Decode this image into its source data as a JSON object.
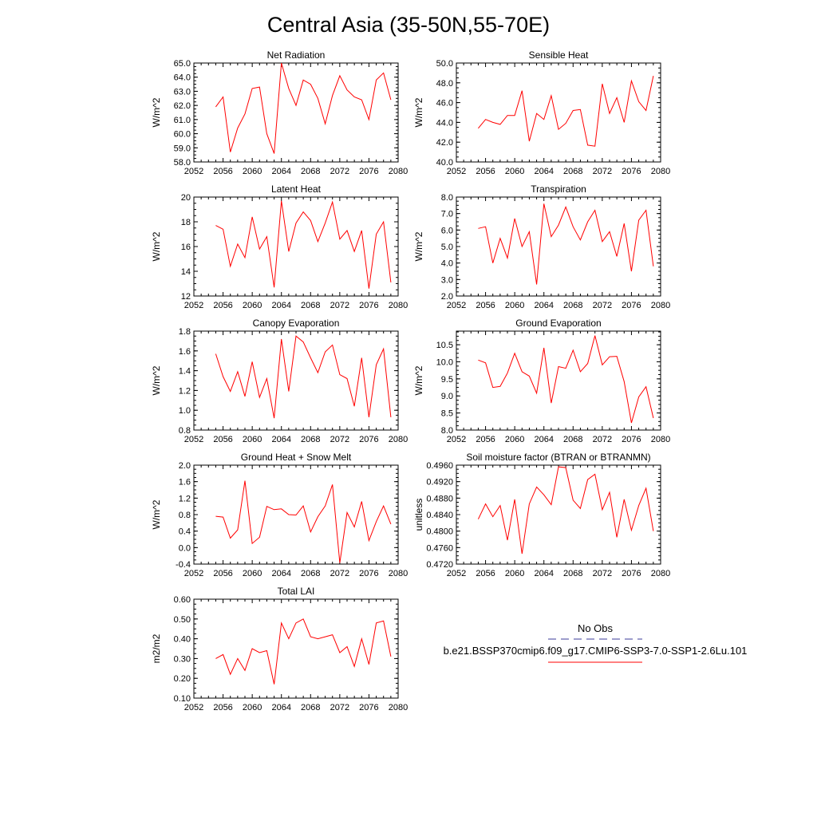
{
  "page_title": "Central Asia (35-50N,55-70E)",
  "legend": {
    "items": [
      {
        "label": "No Obs",
        "color": "#3b3b9a",
        "dash": "dashed"
      },
      {
        "label": "b.e21.BSSP370cmip6.f09_g17.CMIP6-SSP3-7.0-SSP1-2.6Lu.101",
        "color": "#ff0000",
        "dash": "solid"
      }
    ]
  },
  "chart_data": [
    {
      "type": "line",
      "title": "Net Radiation",
      "ylabel": "W/m^2",
      "xlim": [
        2052,
        2080
      ],
      "ylim": [
        58.0,
        65.0
      ],
      "xticks": [
        2052,
        2056,
        2060,
        2064,
        2068,
        2072,
        2076,
        2080
      ],
      "xtick_labels": [
        "2052",
        "2056",
        "2060",
        "2064",
        "2068",
        "2072",
        "2076",
        "2080"
      ],
      "yticks": [
        58,
        59,
        60,
        61,
        62,
        63,
        64,
        65
      ],
      "ytick_labels": [
        "58.0",
        "59.0",
        "60.0",
        "61.0",
        "62.0",
        "63.0",
        "64.0",
        "65.0"
      ],
      "color": "#ff0000",
      "x": [
        2055,
        2056,
        2057,
        2058,
        2059,
        2060,
        2061,
        2062,
        2063,
        2064,
        2065,
        2066,
        2067,
        2068,
        2069,
        2070,
        2071,
        2072,
        2073,
        2074,
        2075,
        2076,
        2077,
        2078,
        2079
      ],
      "y": [
        61.9,
        62.6,
        58.7,
        60.4,
        61.4,
        63.2,
        63.3,
        60.0,
        58.6,
        65.0,
        63.2,
        62.0,
        63.8,
        63.5,
        62.5,
        60.7,
        62.7,
        64.1,
        63.1,
        62.6,
        62.4,
        61.0,
        63.8,
        64.3,
        62.4
      ]
    },
    {
      "type": "line",
      "title": "Sensible Heat",
      "ylabel": "W/m^2",
      "xlim": [
        2052,
        2080
      ],
      "ylim": [
        40.0,
        50.0
      ],
      "xticks": [
        2052,
        2056,
        2060,
        2064,
        2068,
        2072,
        2076,
        2080
      ],
      "xtick_labels": [
        "2052",
        "2056",
        "2060",
        "2064",
        "2068",
        "2072",
        "2076",
        "2080"
      ],
      "yticks": [
        40,
        42,
        44,
        46,
        48,
        50
      ],
      "ytick_labels": [
        "40.0",
        "42.0",
        "44.0",
        "46.0",
        "48.0",
        "50.0"
      ],
      "color": "#ff0000",
      "x": [
        2055,
        2056,
        2057,
        2058,
        2059,
        2060,
        2061,
        2062,
        2063,
        2064,
        2065,
        2066,
        2067,
        2068,
        2069,
        2070,
        2071,
        2072,
        2073,
        2074,
        2075,
        2076,
        2077,
        2078,
        2079
      ],
      "y": [
        43.4,
        44.3,
        44.0,
        43.8,
        44.7,
        44.7,
        47.2,
        42.1,
        44.9,
        44.3,
        46.7,
        43.3,
        43.9,
        45.2,
        45.3,
        41.7,
        41.6,
        47.9,
        44.9,
        46.5,
        44.0,
        48.2,
        46.1,
        45.2,
        48.7
      ]
    },
    {
      "type": "line",
      "title": "Latent Heat",
      "ylabel": "W/m^2",
      "xlim": [
        2052,
        2080
      ],
      "ylim": [
        12,
        20
      ],
      "xticks": [
        2052,
        2056,
        2060,
        2064,
        2068,
        2072,
        2076,
        2080
      ],
      "xtick_labels": [
        "2052",
        "2056",
        "2060",
        "2064",
        "2068",
        "2072",
        "2076",
        "2080"
      ],
      "yticks": [
        12,
        14,
        16,
        18,
        20
      ],
      "ytick_labels": [
        "12",
        "14",
        "16",
        "18",
        "20"
      ],
      "color": "#ff0000",
      "x": [
        2055,
        2056,
        2057,
        2058,
        2059,
        2060,
        2061,
        2062,
        2063,
        2064,
        2065,
        2066,
        2067,
        2068,
        2069,
        2070,
        2071,
        2072,
        2073,
        2074,
        2075,
        2076,
        2077,
        2078,
        2079
      ],
      "y": [
        17.7,
        17.4,
        14.4,
        16.2,
        15.1,
        18.4,
        15.8,
        16.8,
        12.7,
        19.7,
        15.6,
        17.9,
        18.8,
        18.1,
        16.4,
        17.9,
        19.6,
        16.6,
        17.3,
        15.6,
        17.3,
        12.6,
        17.0,
        18.0,
        13.1
      ]
    },
    {
      "type": "line",
      "title": "Transpiration",
      "ylabel": "W/m^2",
      "xlim": [
        2052,
        2080
      ],
      "ylim": [
        2.0,
        8.0
      ],
      "xticks": [
        2052,
        2056,
        2060,
        2064,
        2068,
        2072,
        2076,
        2080
      ],
      "xtick_labels": [
        "2052",
        "2056",
        "2060",
        "2064",
        "2068",
        "2072",
        "2076",
        "2080"
      ],
      "yticks": [
        2,
        3,
        4,
        5,
        6,
        7,
        8
      ],
      "ytick_labels": [
        "2.0",
        "3.0",
        "4.0",
        "5.0",
        "6.0",
        "7.0",
        "8.0"
      ],
      "color": "#ff0000",
      "x": [
        2055,
        2056,
        2057,
        2058,
        2059,
        2060,
        2061,
        2062,
        2063,
        2064,
        2065,
        2066,
        2067,
        2068,
        2069,
        2070,
        2071,
        2072,
        2073,
        2074,
        2075,
        2076,
        2077,
        2078,
        2079
      ],
      "y": [
        6.1,
        6.2,
        4.0,
        5.5,
        4.3,
        6.7,
        5.0,
        5.9,
        2.7,
        7.6,
        5.6,
        6.3,
        7.4,
        6.2,
        5.4,
        6.5,
        7.2,
        5.3,
        5.9,
        4.4,
        6.4,
        3.5,
        6.6,
        7.2,
        3.8
      ]
    },
    {
      "type": "line",
      "title": "Canopy Evaporation",
      "ylabel": "W/m^2",
      "xlim": [
        2052,
        2080
      ],
      "ylim": [
        0.8,
        1.8
      ],
      "xticks": [
        2052,
        2056,
        2060,
        2064,
        2068,
        2072,
        2076,
        2080
      ],
      "xtick_labels": [
        "2052",
        "2056",
        "2060",
        "2064",
        "2068",
        "2072",
        "2076",
        "2080"
      ],
      "yticks": [
        0.8,
        1.0,
        1.2,
        1.4,
        1.6,
        1.8
      ],
      "ytick_labels": [
        "0.8",
        "1.0",
        "1.2",
        "1.4",
        "1.6",
        "1.8"
      ],
      "color": "#ff0000",
      "x": [
        2055,
        2056,
        2057,
        2058,
        2059,
        2060,
        2061,
        2062,
        2063,
        2064,
        2065,
        2066,
        2067,
        2068,
        2069,
        2070,
        2071,
        2072,
        2073,
        2074,
        2075,
        2076,
        2077,
        2078,
        2079
      ],
      "y": [
        1.57,
        1.34,
        1.19,
        1.39,
        1.14,
        1.49,
        1.13,
        1.32,
        0.92,
        1.72,
        1.19,
        1.75,
        1.69,
        1.53,
        1.38,
        1.59,
        1.66,
        1.36,
        1.32,
        1.04,
        1.53,
        0.93,
        1.46,
        1.62,
        0.93
      ]
    },
    {
      "type": "line",
      "title": "Ground Evaporation",
      "ylabel": "W/m^2",
      "xlim": [
        2052,
        2080
      ],
      "ylim": [
        8.0,
        10.9
      ],
      "xticks": [
        2052,
        2056,
        2060,
        2064,
        2068,
        2072,
        2076,
        2080
      ],
      "xtick_labels": [
        "2052",
        "2056",
        "2060",
        "2064",
        "2068",
        "2072",
        "2076",
        "2080"
      ],
      "yticks": [
        8.0,
        8.5,
        9.0,
        9.5,
        10.0,
        10.5
      ],
      "ytick_labels": [
        "8.0",
        "8.5",
        "9.0",
        "9.5",
        "10.0",
        "10.5"
      ],
      "color": "#ff0000",
      "x": [
        2055,
        2056,
        2057,
        2058,
        2059,
        2060,
        2061,
        2062,
        2063,
        2064,
        2065,
        2066,
        2067,
        2068,
        2069,
        2070,
        2071,
        2072,
        2073,
        2074,
        2075,
        2076,
        2077,
        2078,
        2079
      ],
      "y": [
        10.05,
        9.97,
        9.25,
        9.28,
        9.67,
        10.25,
        9.71,
        9.58,
        9.08,
        10.41,
        8.79,
        9.86,
        9.81,
        10.34,
        9.71,
        9.95,
        10.77,
        9.91,
        10.15,
        10.16,
        9.42,
        8.21,
        8.97,
        9.27,
        8.35
      ]
    },
    {
      "type": "line",
      "title": "Ground Heat + Snow Melt",
      "ylabel": "W/m^2",
      "xlim": [
        2052,
        2080
      ],
      "ylim": [
        -0.4,
        2.0
      ],
      "xticks": [
        2052,
        2056,
        2060,
        2064,
        2068,
        2072,
        2076,
        2080
      ],
      "xtick_labels": [
        "2052",
        "2056",
        "2060",
        "2064",
        "2068",
        "2072",
        "2076",
        "2080"
      ],
      "yticks": [
        -0.4,
        0.0,
        0.4,
        0.8,
        1.2,
        1.6,
        2.0
      ],
      "ytick_labels": [
        "-0.4",
        "0.0",
        "0.4",
        "0.8",
        "1.2",
        "1.6",
        "2.0"
      ],
      "color": "#ff0000",
      "x": [
        2055,
        2056,
        2057,
        2058,
        2059,
        2060,
        2061,
        2062,
        2063,
        2064,
        2065,
        2066,
        2067,
        2068,
        2069,
        2070,
        2071,
        2072,
        2073,
        2074,
        2075,
        2076,
        2077,
        2078,
        2079
      ],
      "y": [
        0.76,
        0.74,
        0.23,
        0.43,
        1.62,
        0.1,
        0.25,
        1.0,
        0.92,
        0.94,
        0.8,
        0.79,
        1.01,
        0.38,
        0.75,
        1.01,
        1.53,
        -0.37,
        0.85,
        0.5,
        1.12,
        0.17,
        0.63,
        1.01,
        0.57
      ]
    },
    {
      "type": "line",
      "title": "Soil moisture factor (BTRAN or BTRANMN)",
      "ylabel": "unitless",
      "xlim": [
        2052,
        2080
      ],
      "ylim": [
        0.472,
        0.496
      ],
      "xticks": [
        2052,
        2056,
        2060,
        2064,
        2068,
        2072,
        2076,
        2080
      ],
      "xtick_labels": [
        "2052",
        "2056",
        "2060",
        "2064",
        "2068",
        "2072",
        "2076",
        "2080"
      ],
      "yticks": [
        0.472,
        0.476,
        0.48,
        0.484,
        0.488,
        0.492,
        0.496
      ],
      "ytick_labels": [
        "0.4720",
        "0.4760",
        "0.4800",
        "0.4840",
        "0.4880",
        "0.4920",
        "0.4960"
      ],
      "color": "#ff0000",
      "x": [
        2055,
        2056,
        2057,
        2058,
        2059,
        2060,
        2061,
        2062,
        2063,
        2064,
        2065,
        2066,
        2067,
        2068,
        2069,
        2070,
        2071,
        2072,
        2073,
        2074,
        2075,
        2076,
        2077,
        2078,
        2079
      ],
      "y": [
        0.4829,
        0.4866,
        0.4835,
        0.4862,
        0.4778,
        0.4877,
        0.4745,
        0.4866,
        0.4907,
        0.4888,
        0.4864,
        0.4956,
        0.4954,
        0.4875,
        0.4855,
        0.4925,
        0.4938,
        0.4852,
        0.4894,
        0.4785,
        0.4877,
        0.4802,
        0.4862,
        0.4904,
        0.48
      ]
    },
    {
      "type": "line",
      "title": "Total LAI",
      "ylabel": "m2/m2",
      "xlim": [
        2052,
        2080
      ],
      "ylim": [
        0.1,
        0.6
      ],
      "xticks": [
        2052,
        2056,
        2060,
        2064,
        2068,
        2072,
        2076,
        2080
      ],
      "xtick_labels": [
        "2052",
        "2056",
        "2060",
        "2064",
        "2068",
        "2072",
        "2076",
        "2080"
      ],
      "yticks": [
        0.1,
        0.2,
        0.3,
        0.4,
        0.5,
        0.6
      ],
      "ytick_labels": [
        "0.10",
        "0.20",
        "0.30",
        "0.40",
        "0.50",
        "0.60"
      ],
      "color": "#ff0000",
      "x": [
        2055,
        2056,
        2057,
        2058,
        2059,
        2060,
        2061,
        2062,
        2063,
        2064,
        2065,
        2066,
        2067,
        2068,
        2069,
        2070,
        2071,
        2072,
        2073,
        2074,
        2075,
        2076,
        2077,
        2078,
        2079
      ],
      "y": [
        0.3,
        0.32,
        0.22,
        0.3,
        0.24,
        0.35,
        0.33,
        0.34,
        0.17,
        0.48,
        0.4,
        0.48,
        0.5,
        0.41,
        0.4,
        0.41,
        0.42,
        0.33,
        0.36,
        0.26,
        0.4,
        0.27,
        0.48,
        0.49,
        0.31
      ]
    }
  ]
}
